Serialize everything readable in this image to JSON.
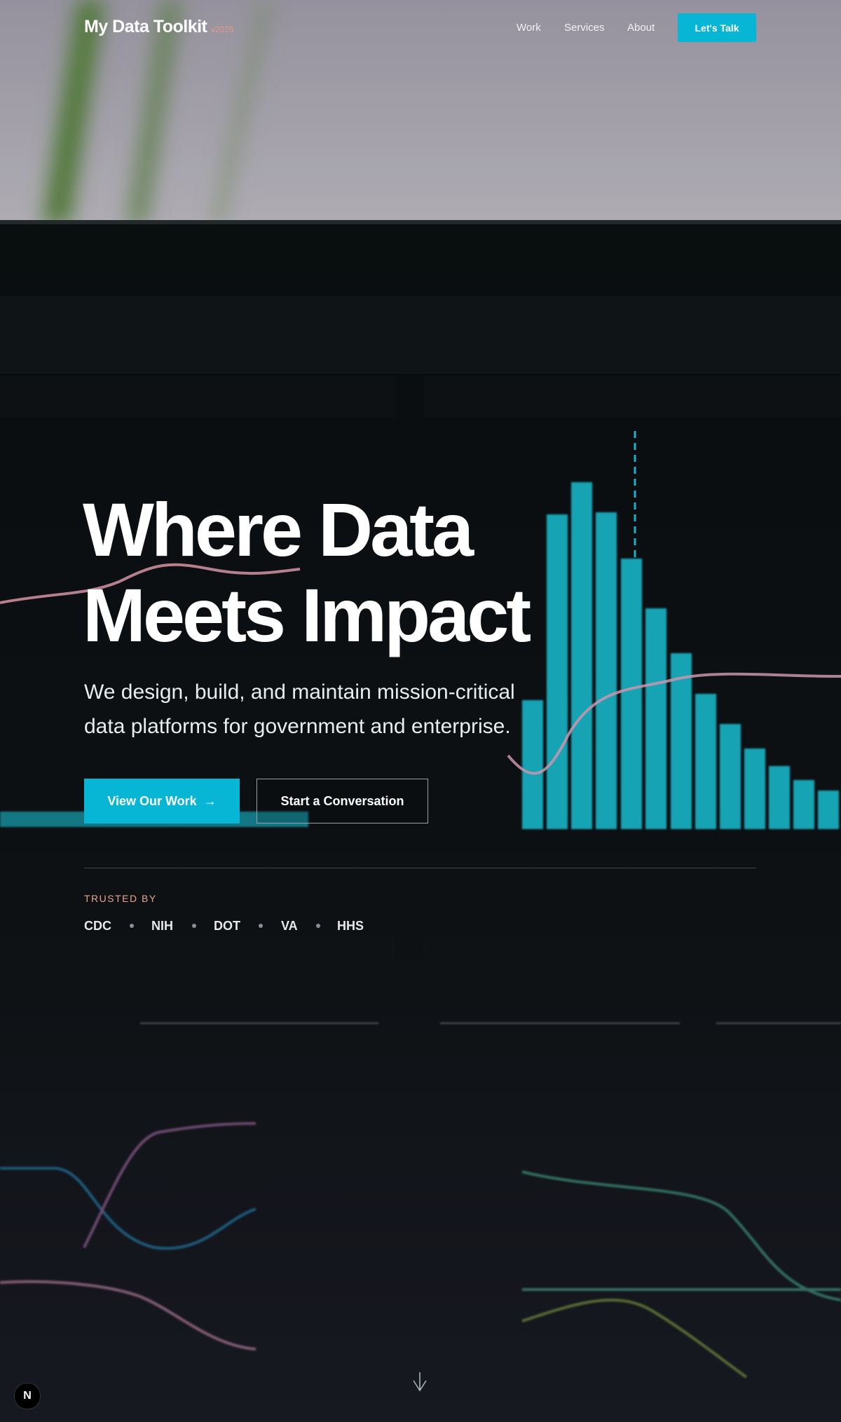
{
  "nav": {
    "brand": "My Data Toolkit",
    "version": "v2025",
    "links": [
      "Work",
      "Services",
      "About"
    ],
    "cta": "Let's Talk"
  },
  "hero": {
    "title_lines": [
      "Where Data",
      "Meets Impact"
    ],
    "subtitle_lines": [
      "We design, build, and maintain mission-critical",
      "data platforms for government and enterprise."
    ],
    "primary_button": "View Our Work",
    "primary_button_icon": "→",
    "secondary_button": "Start a Conversation"
  },
  "trusted": {
    "label": "TRUSTED BY",
    "logos": [
      "CDC",
      "NIH",
      "DOT",
      "VA",
      "HHS"
    ]
  },
  "badge": "N"
}
